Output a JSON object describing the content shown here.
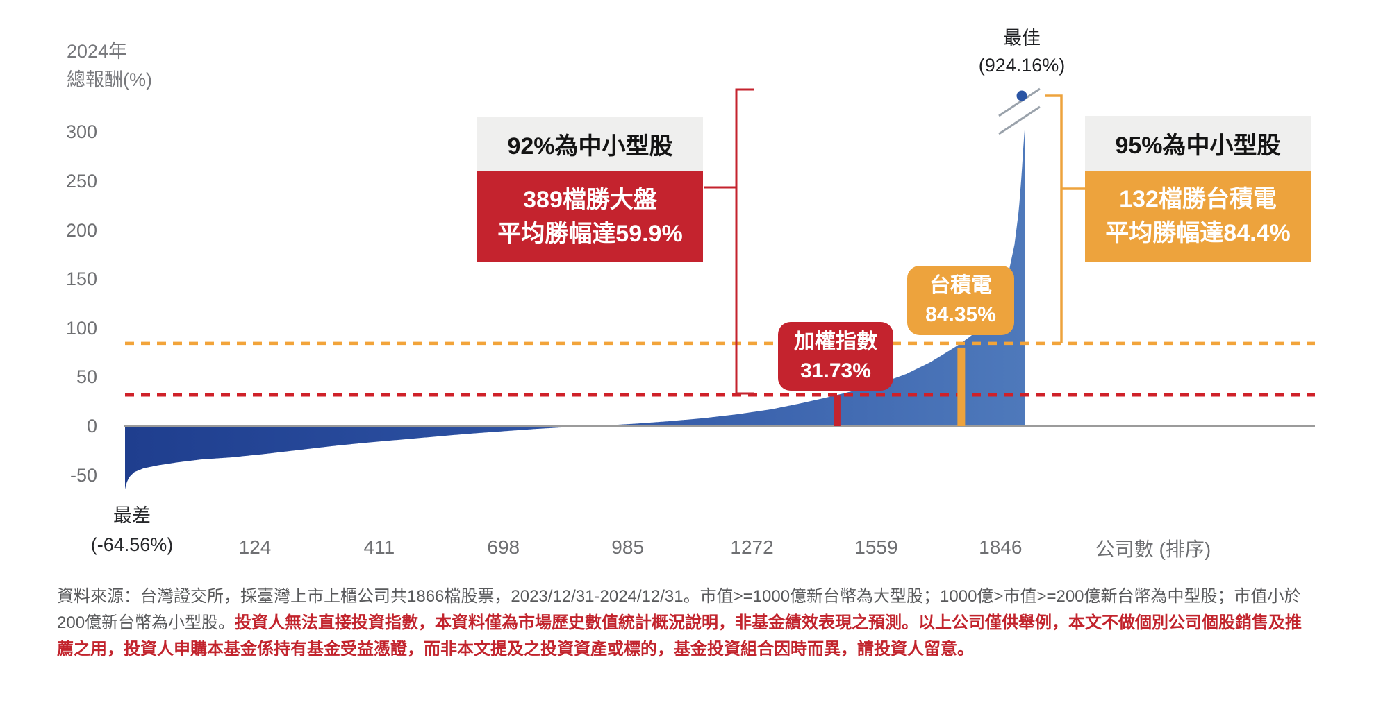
{
  "colors": {
    "red": "#c4232e",
    "red_dash": "#cf2129",
    "orange": "#eda33d",
    "orange_dash": "#f2a43a",
    "bar_left": "#1f3e8e",
    "bar_mid": "#2d52a3",
    "bar_right": "#4e79bb",
    "axis": "#9b9b9b",
    "break_mark": "#9aa2ab",
    "dot": "#2b55a4"
  },
  "y_axis_title": {
    "line1": "2024年",
    "line2": "總報酬(%)"
  },
  "chart_data": {
    "type": "bar",
    "title": "2024年總報酬(%) — 台灣上市上櫃公司依報酬排序",
    "n_stocks": 1866,
    "xlabel": "公司數 (排序)",
    "x_ticks": [
      124,
      411,
      698,
      985,
      1272,
      1559,
      1846
    ],
    "y_ticks": [
      300,
      250,
      200,
      150,
      100,
      50,
      0,
      -50
    ],
    "ylim": [
      -75,
      310
    ],
    "grid": false,
    "worst": {
      "label": "最差",
      "display": "(-64.56%)",
      "value": -64.56
    },
    "best": {
      "label": "最佳",
      "display": "(924.16%)",
      "value": 924.16,
      "clip_at": 302
    },
    "index_marker": {
      "label": "加權指數",
      "display": "31.73%",
      "value": 31.73,
      "rank": 1477
    },
    "tsmc_marker": {
      "label": "台積電",
      "display": "84.35%",
      "value": 84.35,
      "rank": 1734
    },
    "curve_anchors": [
      [
        1,
        -64.56
      ],
      [
        4,
        -58
      ],
      [
        10,
        -52
      ],
      [
        20,
        -47
      ],
      [
        40,
        -43
      ],
      [
        70,
        -40
      ],
      [
        110,
        -37
      ],
      [
        160,
        -34
      ],
      [
        220,
        -32
      ],
      [
        290,
        -28.5
      ],
      [
        360,
        -24.5
      ],
      [
        430,
        -20.5
      ],
      [
        500,
        -17
      ],
      [
        570,
        -14
      ],
      [
        640,
        -11
      ],
      [
        710,
        -8
      ],
      [
        780,
        -5.5
      ],
      [
        850,
        -3
      ],
      [
        920,
        -1
      ],
      [
        990,
        0.5
      ],
      [
        1060,
        2.5
      ],
      [
        1130,
        5
      ],
      [
        1200,
        8
      ],
      [
        1270,
        12
      ],
      [
        1340,
        17
      ],
      [
        1400,
        23
      ],
      [
        1450,
        28.5
      ],
      [
        1477,
        31.73
      ],
      [
        1520,
        37
      ],
      [
        1570,
        44
      ],
      [
        1620,
        53
      ],
      [
        1670,
        65
      ],
      [
        1710,
        77
      ],
      [
        1734,
        84.35
      ],
      [
        1760,
        94
      ],
      [
        1785,
        107
      ],
      [
        1810,
        125
      ],
      [
        1830,
        150
      ],
      [
        1845,
        185
      ],
      [
        1854,
        220
      ],
      [
        1860,
        258
      ],
      [
        1864,
        290
      ],
      [
        1866,
        302
      ]
    ]
  },
  "anno_left": {
    "header": "92%為中小型股",
    "body_line1": "389檔勝大盤",
    "body_line2": "平均勝幅達59.9%"
  },
  "anno_right": {
    "header": "95%為中小型股",
    "body_line1": "132檔勝台積電",
    "body_line2": "平均勝幅達84.4%"
  },
  "footer": {
    "source": "資料來源：台灣證交所，採臺灣上市上櫃公司共1866檔股票，2023/12/31-2024/12/31。市值>=1000億新台幣為大型股；1000億>市值>=200億新台幣為中型股；市值小於200億新台幣為小型股。",
    "disclaimer": "投資人無法直接投資指數，本資料僅為市場歷史數值統計概況說明，非基金績效表現之預測。以上公司僅供舉例，本文不做個別公司個股銷售及推薦之用，投資人申購本基金係持有基金受益憑證，而非本文提及之投資資產或標的，基金投資組合因時而異，請投資人留意。"
  }
}
